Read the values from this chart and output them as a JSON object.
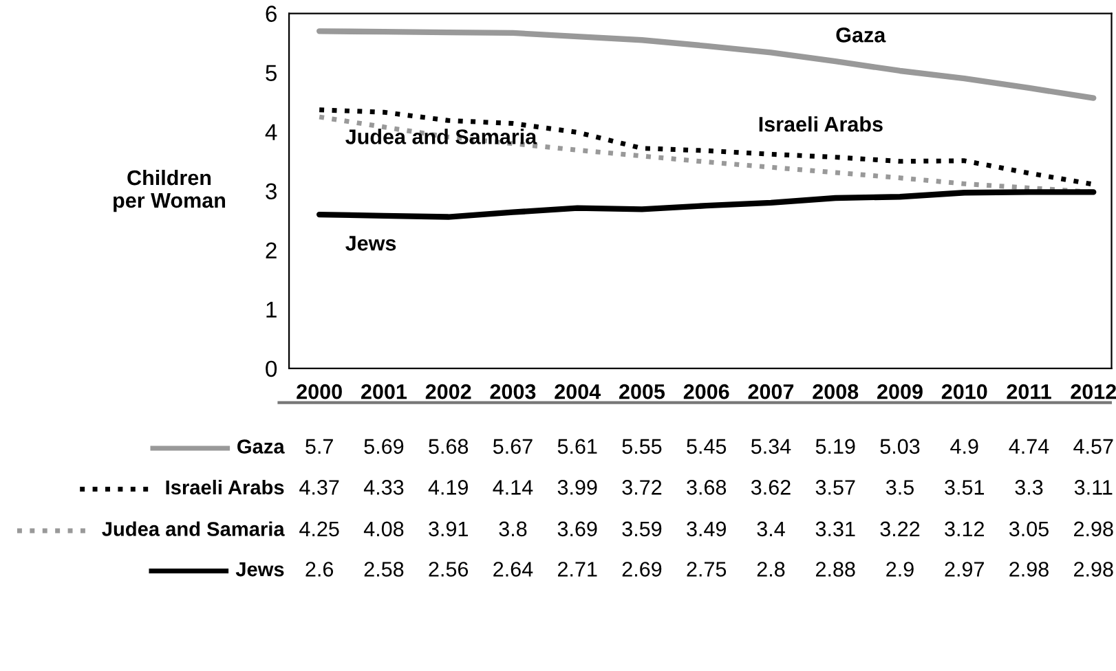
{
  "chart_data": {
    "type": "line",
    "ylabel": "Children\nper Woman",
    "categories": [
      "2000",
      "2001",
      "2002",
      "2003",
      "2004",
      "2005",
      "2006",
      "2007",
      "2008",
      "2009",
      "2010",
      "2011",
      "2012"
    ],
    "series": [
      {
        "name": "Gaza",
        "color": "#999999",
        "line_style": "solid",
        "values": [
          5.7,
          5.69,
          5.68,
          5.67,
          5.61,
          5.55,
          5.45,
          5.34,
          5.19,
          5.03,
          4.9,
          4.74,
          4.57
        ]
      },
      {
        "name": "Israeli Arabs",
        "color": "#000000",
        "line_style": "dotted",
        "values": [
          4.37,
          4.33,
          4.19,
          4.14,
          3.99,
          3.72,
          3.68,
          3.62,
          3.57,
          3.5,
          3.51,
          3.3,
          3.11
        ]
      },
      {
        "name": "Judea and Samaria",
        "color": "#999999",
        "line_style": "dotted",
        "values": [
          4.25,
          4.08,
          3.91,
          3.8,
          3.69,
          3.59,
          3.49,
          3.4,
          3.31,
          3.22,
          3.12,
          3.05,
          2.98
        ]
      },
      {
        "name": "Jews",
        "color": "#000000",
        "line_style": "solid",
        "values": [
          2.6,
          2.58,
          2.56,
          2.64,
          2.71,
          2.69,
          2.75,
          2.8,
          2.88,
          2.9,
          2.97,
          2.98,
          2.98
        ]
      }
    ],
    "ylim": [
      0,
      6
    ],
    "yticks": [
      0,
      1,
      2,
      3,
      4,
      5,
      6
    ],
    "grid": false,
    "legend": "bottom",
    "data_labels": true,
    "marker": "none"
  }
}
